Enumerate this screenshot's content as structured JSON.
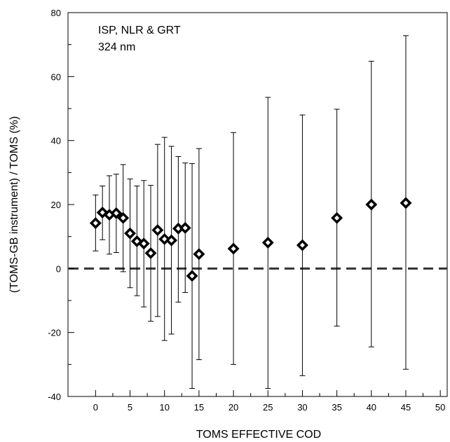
{
  "chart_data": {
    "type": "scatter",
    "annotation": [
      "ISP, NLR & GRT",
      "324 nm"
    ],
    "xlabel": "TOMS EFFECTIVE COD",
    "ylabel": "(TOMS-GB instrument) / TOMS  (%)",
    "xlim": [
      -4,
      51
    ],
    "ylim": [
      -40,
      80
    ],
    "x_ticks": [
      0,
      5,
      10,
      15,
      20,
      25,
      30,
      35,
      40,
      45,
      50
    ],
    "y_ticks": [
      -40,
      -20,
      0,
      20,
      40,
      60,
      80
    ],
    "reference_line": {
      "y": 0,
      "style": "dashed"
    },
    "grid": false,
    "series": [
      {
        "marker": "diamond",
        "points": [
          {
            "x": 0,
            "y": 14.2,
            "low": 5.5,
            "high": 23.0
          },
          {
            "x": 1,
            "y": 17.5,
            "low": 9.0,
            "high": 25.8
          },
          {
            "x": 2,
            "y": 16.8,
            "low": 4.5,
            "high": 29.0
          },
          {
            "x": 3,
            "y": 17.3,
            "low": 5.0,
            "high": 29.5
          },
          {
            "x": 4,
            "y": 15.8,
            "low": -1.0,
            "high": 32.5
          },
          {
            "x": 5,
            "y": 11.0,
            "low": -6.0,
            "high": 28.0
          },
          {
            "x": 6,
            "y": 8.5,
            "low": -8.5,
            "high": 25.8
          },
          {
            "x": 7,
            "y": 7.8,
            "low": -12.0,
            "high": 27.5
          },
          {
            "x": 8,
            "y": 4.8,
            "low": -16.5,
            "high": 26.0
          },
          {
            "x": 9,
            "y": 12.0,
            "low": -15.0,
            "high": 38.8
          },
          {
            "x": 10,
            "y": 9.2,
            "low": -22.5,
            "high": 41.0
          },
          {
            "x": 11,
            "y": 8.8,
            "low": -20.5,
            "high": 38.2
          },
          {
            "x": 12,
            "y": 12.5,
            "low": -10.5,
            "high": 35.0
          },
          {
            "x": 13,
            "y": 12.7,
            "low": -7.5,
            "high": 33.0
          },
          {
            "x": 14,
            "y": -2.3,
            "low": -37.5,
            "high": 32.8
          },
          {
            "x": 15,
            "y": 4.5,
            "low": -28.5,
            "high": 37.5
          },
          {
            "x": 20,
            "y": 6.2,
            "low": -30.0,
            "high": 42.5
          },
          {
            "x": 25,
            "y": 8.1,
            "low": -37.5,
            "high": 53.5
          },
          {
            "x": 30,
            "y": 7.3,
            "low": -33.5,
            "high": 48.0
          },
          {
            "x": 35,
            "y": 15.8,
            "low": -18.0,
            "high": 49.8
          },
          {
            "x": 40,
            "y": 20.0,
            "low": -24.5,
            "high": 64.8
          },
          {
            "x": 45,
            "y": 20.5,
            "low": -31.5,
            "high": 72.8
          }
        ]
      }
    ]
  }
}
